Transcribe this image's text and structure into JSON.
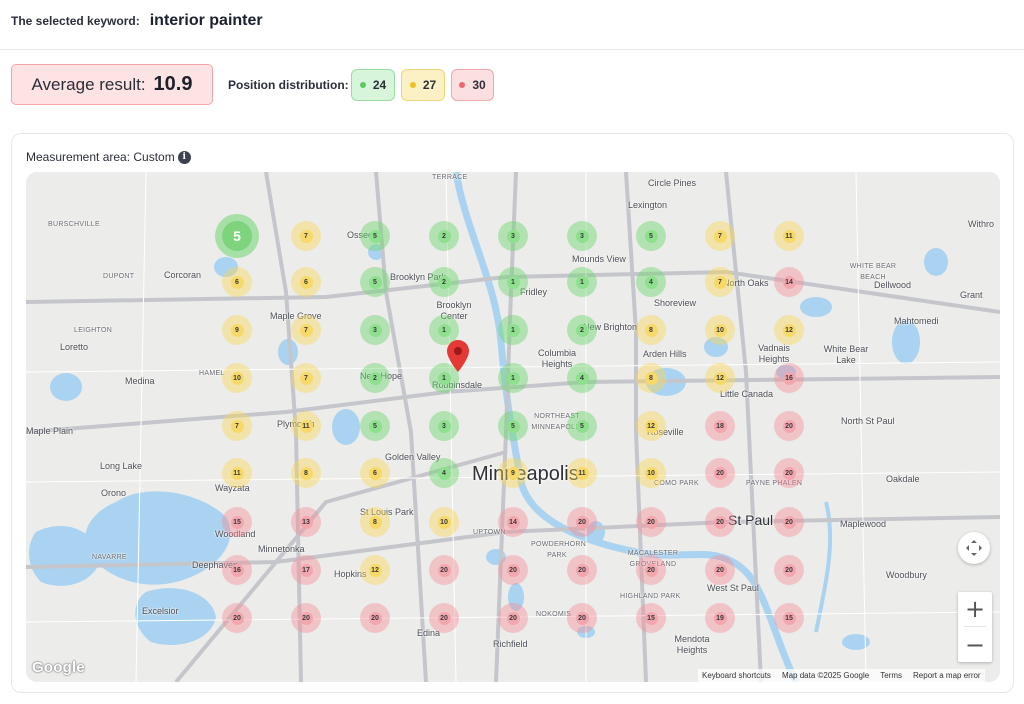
{
  "header": {
    "keyword_label": "The selected keyword:",
    "keyword_value": "interior painter"
  },
  "summary": {
    "average_label": "Average result:",
    "average_value": "10.9",
    "distribution_label": "Position distribution:",
    "distribution": {
      "green": "24",
      "yellow": "27",
      "red": "30"
    }
  },
  "map_panel": {
    "area_label": "Measurement area: Custom",
    "info_icon": "i",
    "attribution": {
      "shortcuts": "Keyboard shortcuts",
      "map_data": "Map data ©2025 Google",
      "terms": "Terms",
      "report": "Report a map error"
    },
    "logo": "Google",
    "controls": {
      "zoom_in": "+",
      "zoom_out": "−"
    }
  },
  "colors": {
    "green": "#8ee08e",
    "yellow": "#f7d96a",
    "red": "#f4a6ae",
    "pin": "#e53935"
  },
  "places": {
    "terrace": "TERRACE",
    "circle_pines": "Circle Pines",
    "lexington": "Lexington",
    "withrow": "Withro",
    "burschville": "BURSCHVILLE",
    "osseo": "Osseo",
    "dupont": "DUPONT",
    "corcoran": "Corcoran",
    "brooklyn_park": "Brooklyn Park",
    "mounds_view": "Mounds View",
    "white_bear_beach": "WHITE BEAR BEACH",
    "dellwood": "Dellwood",
    "grant": "Grant",
    "fridley": "Fridley",
    "north_oaks": "North Oaks",
    "shoreview": "Shoreview",
    "brooklyn_center": "Brooklyn Center",
    "leighton": "LEIGHTON",
    "maple_grove": "Maple Grove",
    "mahtomedi": "Mahtomedi",
    "new_brighton": "New Brighton",
    "loretto": "Loretto",
    "columbia_heights": "Columbia Heights",
    "arden_hills": "Arden Hills",
    "vadnais_heights": "Vadnais Heights",
    "white_bear_lake": "White Bear Lake",
    "hamel": "HAMEL",
    "medina": "Medina",
    "new_hope": "New Hope",
    "robbinsdale": "Robbinsdale",
    "little_canada": "Little Canada",
    "maple_plain": "Maple Plain",
    "plymouth": "Plymouth",
    "northeast_mpls": "NORTHEAST MINNEAPOLIS",
    "roseville": "Roseville",
    "north_st_paul": "North St Paul",
    "long_lake": "Long Lake",
    "golden_valley": "Golden Valley",
    "minneapolis": "Minneapolis",
    "como_park": "COMO PARK",
    "payne_phalen": "PAYNE PHALEN",
    "oakdale": "Oakdale",
    "wayzata": "Wayzata",
    "orono": "Orono",
    "st_louis_park": "St Louis Park",
    "uptown": "UPTOWN",
    "st_paul": "St Paul",
    "maplewood": "Maplewood",
    "woodland": "Woodland",
    "minnetonka": "Minnetonka",
    "powderhorn_park": "POWDERHORN PARK",
    "navarre": "NAVARRE",
    "macalester_groveland": "MACALESTER GROVELAND",
    "deephaven": "Deephaven",
    "hopkins": "Hopkins",
    "west_st_paul": "West St Paul",
    "woodbury": "Woodbury",
    "highland_park": "HIGHLAND PARK",
    "excelsior": "Excelsior",
    "nokomis": "NOKOMIS",
    "mendota_heights": "Mendota Heights",
    "edina": "Edina",
    "richfield": "Richfield"
  },
  "grid_markers": [
    [
      "5",
      "7",
      "5",
      "2",
      "3",
      "3",
      "5",
      "7",
      "11"
    ],
    [
      "6",
      "6",
      "5",
      "2",
      "1",
      "1",
      "4",
      "7",
      "14"
    ],
    [
      "9",
      "7",
      "3",
      "1",
      "1",
      "2",
      "8",
      "10",
      "12"
    ],
    [
      "10",
      "7",
      "2",
      "1",
      "1",
      "4",
      "8",
      "12",
      "16"
    ],
    [
      "7",
      "11",
      "5",
      "3",
      "5",
      "5",
      "12",
      "18",
      "20"
    ],
    [
      "11",
      "8",
      "6",
      "4",
      "9",
      "11",
      "10",
      "20",
      "20"
    ],
    [
      "15",
      "13",
      "8",
      "10",
      "14",
      "20",
      "20",
      "20",
      "20"
    ],
    [
      "16",
      "17",
      "12",
      "20",
      "20",
      "20",
      "20",
      "20",
      "20"
    ],
    [
      "20",
      "20",
      "20",
      "20",
      "20",
      "20",
      "15",
      "19",
      "15"
    ]
  ]
}
